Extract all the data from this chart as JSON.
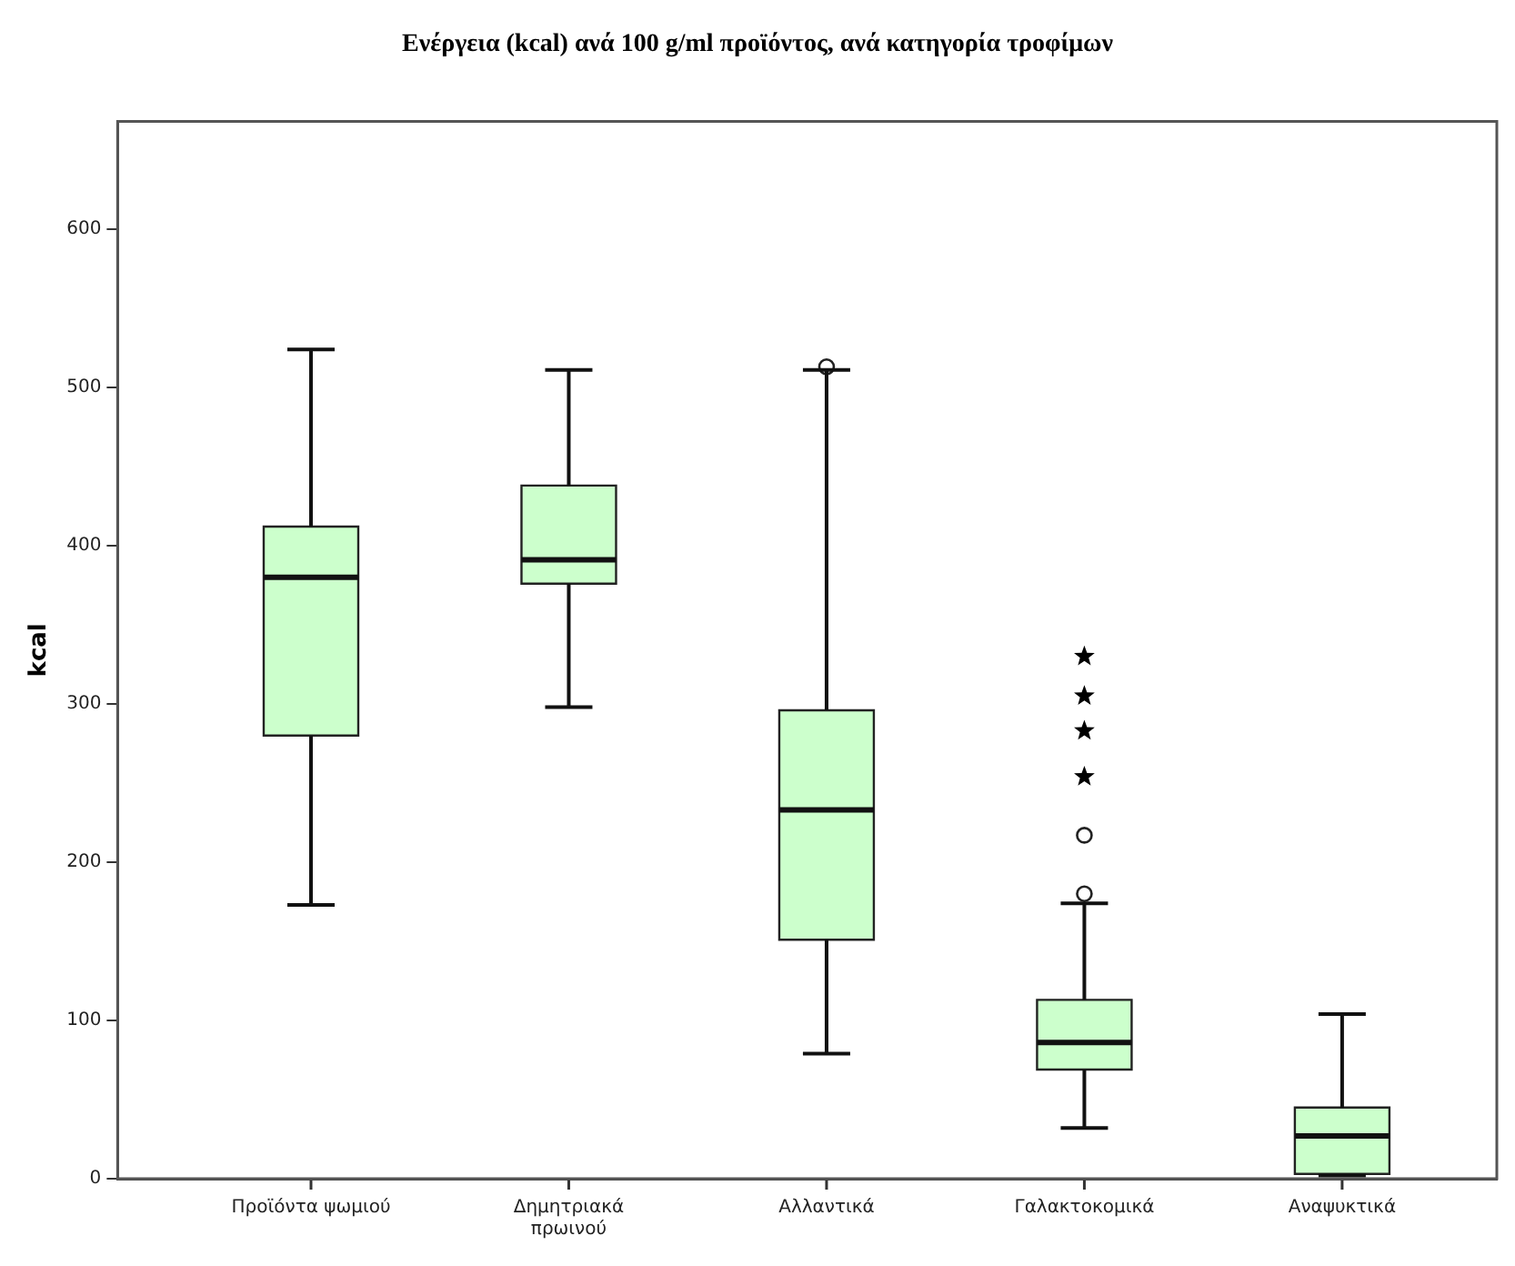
{
  "chart_data": {
    "type": "box",
    "title": "Ενέργεια (kcal) ανά 100 g/ml προϊόντος, ανά κατηγορία τροφίμων",
    "ylabel": "kcal",
    "categories": [
      "Προϊόντα ψωμιού",
      "Δημητριακά\nπρωινού",
      "Αλλαντικά",
      "Γαλακτοκομικά",
      "Αναψυκτικά"
    ],
    "series": [
      {
        "type": "box",
        "color": "#ccffcc",
        "boxes": [
          {
            "low": 173,
            "q1": 280,
            "median": 380,
            "q3": 412,
            "high": 524
          },
          {
            "low": 298,
            "q1": 376,
            "median": 391,
            "q3": 438,
            "high": 511
          },
          {
            "low": 79,
            "q1": 151,
            "median": 233,
            "q3": 296,
            "high": 511,
            "outliers": [
              513
            ]
          },
          {
            "low": 32,
            "q1": 69,
            "median": 86,
            "q3": 113,
            "high": 174,
            "outliers": [
              217,
              180
            ]
          },
          {
            "low": 2,
            "q1": 3,
            "median": 27,
            "q3": 45,
            "high": 104
          }
        ]
      },
      {
        "type": "scatter",
        "marker": "star",
        "color": "#000000",
        "x": [
          "Γαλακτοκομικά",
          "Γαλακτοκομικά",
          "Γαλακτοκομικά",
          "Γαλακτοκομικά"
        ],
        "values": [
          330,
          305,
          283,
          254
        ]
      }
    ],
    "ylim": [
      0,
      668
    ],
    "yticks": [
      0,
      100,
      200,
      300,
      400,
      500,
      600
    ],
    "grid": false,
    "legend": false
  }
}
